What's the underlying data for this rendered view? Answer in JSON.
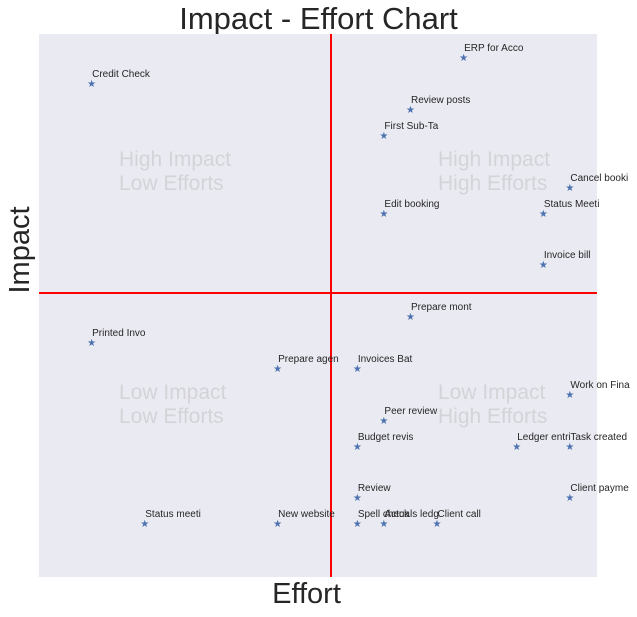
{
  "chart_data": {
    "type": "scatter",
    "title": "Impact - Effort Chart",
    "xlabel": "Effort",
    "ylabel": "Impact",
    "xlim": [
      0,
      21
    ],
    "ylim": [
      1,
      22
    ],
    "grid": false,
    "marker": "star",
    "marker_color": "#4c72b0",
    "background_color": "#eaeaf2",
    "divider_color": "#ff0000",
    "divider_x": 11,
    "divider_y": 12,
    "quadrant_labels": [
      {
        "text": "High Impact\nLow Efforts",
        "x": 3,
        "y": 16
      },
      {
        "text": "High Impact\nHigh Efforts",
        "x": 15,
        "y": 16
      },
      {
        "text": "Low Impact\nLow Efforts",
        "x": 3,
        "y": 7
      },
      {
        "text": "Low Impact\nHigh Efforts",
        "x": 15,
        "y": 7
      }
    ],
    "points": [
      {
        "label": "ERP for Acco",
        "x": 16,
        "y": 21
      },
      {
        "label": "Credit Check",
        "x": 2,
        "y": 20
      },
      {
        "label": "Review posts",
        "x": 14,
        "y": 19
      },
      {
        "label": "First Sub-Ta",
        "x": 13,
        "y": 18
      },
      {
        "label": "Cancel booki",
        "x": 20,
        "y": 16
      },
      {
        "label": "Edit booking",
        "x": 13,
        "y": 15
      },
      {
        "label": "Status Meeti",
        "x": 19,
        "y": 15
      },
      {
        "label": "Invoice bill",
        "x": 19,
        "y": 13
      },
      {
        "label": "Prepare mont",
        "x": 14,
        "y": 11
      },
      {
        "label": "Printed Invo",
        "x": 2,
        "y": 10
      },
      {
        "label": "Prepare agen",
        "x": 9,
        "y": 9
      },
      {
        "label": "Invoices Bat",
        "x": 12,
        "y": 9
      },
      {
        "label": "Work on Fina",
        "x": 20,
        "y": 8
      },
      {
        "label": "Peer review",
        "x": 13,
        "y": 7
      },
      {
        "label": "Budget revis",
        "x": 12,
        "y": 6
      },
      {
        "label": "Ledger entri",
        "x": 18,
        "y": 6
      },
      {
        "label": "Task created",
        "x": 20,
        "y": 6
      },
      {
        "label": "Review",
        "x": 12,
        "y": 4
      },
      {
        "label": "Client payme",
        "x": 20,
        "y": 4
      },
      {
        "label": "Status meeti",
        "x": 4,
        "y": 3
      },
      {
        "label": "New website",
        "x": 9,
        "y": 3
      },
      {
        "label": "Spell check",
        "x": 12,
        "y": 3
      },
      {
        "label": "Actuals ledg",
        "x": 13,
        "y": 3
      },
      {
        "label": "Client call",
        "x": 15,
        "y": 3
      }
    ]
  },
  "star_glyph": "★"
}
